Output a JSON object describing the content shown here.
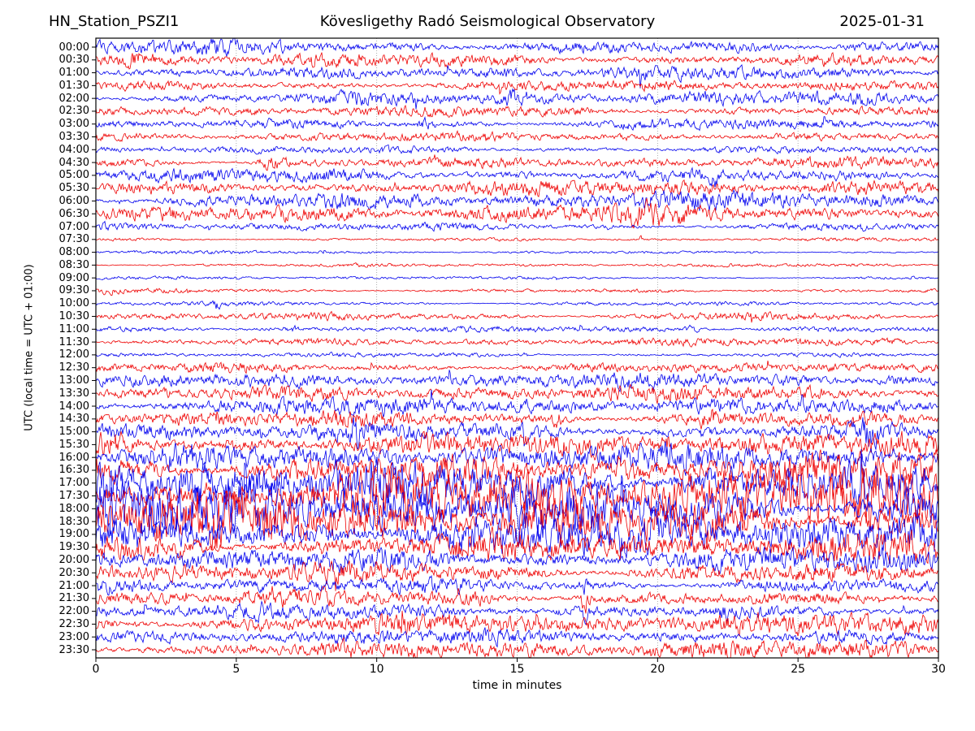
{
  "chart_data": {
    "type": "line",
    "subtype": "helicorder-seismogram",
    "title_left": "HN_Station_PSZI1",
    "title_center": "Kövesligethy Radó Seismological Observatory",
    "title_right": "2025-01-31",
    "xlabel": "time in minutes",
    "ylabel": "UTC (local time = UTC + 01:00)",
    "x_range": [
      0,
      30
    ],
    "x_ticks": [
      0,
      5,
      10,
      15,
      20,
      25,
      30
    ],
    "grid_minutes": [
      5,
      10,
      15,
      20,
      25
    ],
    "grid_on": true,
    "colors": {
      "blue": "#0000ee",
      "red": "#ee0000",
      "grid": "#999999",
      "frame": "#000000"
    },
    "trace_minutes_per_row": 30,
    "rows": [
      {
        "t": "00:00",
        "c": "b",
        "a": 4.5,
        "ev": [
          [
            27.5,
            0.8,
            2
          ]
        ]
      },
      {
        "t": "00:30",
        "c": "r",
        "a": 4.5,
        "ev": [
          [
            1.5,
            0.4,
            3
          ]
        ]
      },
      {
        "t": "01:00",
        "c": "b",
        "a": 3.8,
        "ev": [
          [
            14.5,
            0.5,
            2.5
          ]
        ]
      },
      {
        "t": "01:30",
        "c": "r",
        "a": 3.5,
        "ev": []
      },
      {
        "t": "02:00",
        "c": "b",
        "a": 4.2,
        "ev": [
          [
            14.8,
            0.4,
            3
          ]
        ]
      },
      {
        "t": "02:30",
        "c": "r",
        "a": 3.2,
        "ev": []
      },
      {
        "t": "03:00",
        "c": "b",
        "a": 3.6,
        "ev": [
          [
            11.8,
            0.4,
            3
          ]
        ]
      },
      {
        "t": "03:30",
        "c": "r",
        "a": 2.6,
        "ev": []
      },
      {
        "t": "04:00",
        "c": "b",
        "a": 2.6,
        "ev": []
      },
      {
        "t": "04:30",
        "c": "r",
        "a": 3.4,
        "ev": [
          [
            6.3,
            0.5,
            5
          ]
        ]
      },
      {
        "t": "05:00",
        "c": "b",
        "a": 4.6,
        "ev": [
          [
            22.0,
            0.15,
            6
          ]
        ]
      },
      {
        "t": "05:30",
        "c": "r",
        "a": 4.6,
        "ev": []
      },
      {
        "t": "06:00",
        "c": "b",
        "a": 5.0,
        "ev": [
          [
            8.6,
            0.8,
            2.5
          ],
          [
            20.0,
            1.2,
            2.5
          ]
        ]
      },
      {
        "t": "06:30",
        "c": "r",
        "a": 5.2,
        "ev": [
          [
            19.8,
            1.5,
            3
          ]
        ]
      },
      {
        "t": "07:00",
        "c": "b",
        "a": 2.6,
        "ev": [
          [
            27.3,
            0.08,
            7
          ]
        ]
      },
      {
        "t": "07:30",
        "c": "r",
        "a": 1.1,
        "ev": [
          [
            19.4,
            0.08,
            2.5
          ]
        ]
      },
      {
        "t": "08:00",
        "c": "b",
        "a": 1.0,
        "ev": []
      },
      {
        "t": "08:30",
        "c": "r",
        "a": 1.0,
        "ev": []
      },
      {
        "t": "09:00",
        "c": "b",
        "a": 1.0,
        "ev": []
      },
      {
        "t": "09:30",
        "c": "r",
        "a": 1.4,
        "ev": [
          [
            0.5,
            0.3,
            1.5
          ]
        ]
      },
      {
        "t": "10:00",
        "c": "b",
        "a": 1.5,
        "ev": [
          [
            4.3,
            0.12,
            4.5
          ]
        ]
      },
      {
        "t": "10:30",
        "c": "r",
        "a": 2.4,
        "ev": [
          [
            22.8,
            1.5,
            2
          ]
        ]
      },
      {
        "t": "11:00",
        "c": "b",
        "a": 1.7,
        "ev": [
          [
            7.0,
            0.15,
            3.5
          ],
          [
            21.2,
            0.25,
            2.5
          ]
        ]
      },
      {
        "t": "11:30",
        "c": "r",
        "a": 2.2,
        "ev": [
          [
            28.3,
            0.6,
            2
          ]
        ]
      },
      {
        "t": "12:00",
        "c": "b",
        "a": 1.5,
        "ev": []
      },
      {
        "t": "12:30",
        "c": "r",
        "a": 3.4,
        "ev": [
          [
            26.5,
            1.5,
            2
          ]
        ]
      },
      {
        "t": "13:00",
        "c": "b",
        "a": 4.4,
        "ev": [
          [
            28.6,
            0.8,
            3
          ]
        ]
      },
      {
        "t": "13:30",
        "c": "r",
        "a": 4.6,
        "ev": []
      },
      {
        "t": "14:00",
        "c": "b",
        "a": 5.0,
        "ev": [
          [
            6.8,
            1.0,
            3
          ]
        ]
      },
      {
        "t": "14:30",
        "c": "r",
        "a": 5.6,
        "ev": [
          [
            16.4,
            0.2,
            6
          ],
          [
            21.8,
            0.3,
            5
          ]
        ]
      },
      {
        "t": "15:00",
        "c": "b",
        "a": 6.0,
        "ev": [
          [
            9.3,
            0.25,
            9
          ],
          [
            27.6,
            0.5,
            7
          ]
        ]
      },
      {
        "t": "15:30",
        "c": "r",
        "a": 7.0,
        "ev": [
          [
            0.6,
            0.5,
            6
          ],
          [
            20.3,
            0.2,
            7
          ]
        ]
      },
      {
        "t": "16:00",
        "c": "b",
        "a": 8.0,
        "ev": [
          [
            3.4,
            0.8,
            5
          ]
        ]
      },
      {
        "t": "16:30",
        "c": "r",
        "a": 11.0,
        "ev": []
      },
      {
        "t": "17:00",
        "c": "b",
        "a": 15.0,
        "ev": [
          [
            0.4,
            0.4,
            6
          ]
        ]
      },
      {
        "t": "17:30",
        "c": "r",
        "a": 17.0,
        "ev": []
      },
      {
        "t": "18:00",
        "c": "b",
        "a": 17.0,
        "ev": [
          [
            0.3,
            0.5,
            5
          ]
        ]
      },
      {
        "t": "18:30",
        "c": "r",
        "a": 15.0,
        "ev": []
      },
      {
        "t": "19:00",
        "c": "b",
        "a": 13.0,
        "ev": []
      },
      {
        "t": "19:30",
        "c": "r",
        "a": 10.0,
        "ev": []
      },
      {
        "t": "20:00",
        "c": "b",
        "a": 9.0,
        "ev": []
      },
      {
        "t": "20:30",
        "c": "r",
        "a": 7.0,
        "ev": []
      },
      {
        "t": "21:00",
        "c": "b",
        "a": 5.0,
        "ev": [
          [
            17.4,
            0.15,
            7
          ]
        ]
      },
      {
        "t": "21:30",
        "c": "r",
        "a": 5.0,
        "ev": [
          [
            17.4,
            0.15,
            10
          ],
          [
            13.5,
            0.3,
            3
          ]
        ]
      },
      {
        "t": "22:00",
        "c": "b",
        "a": 4.5,
        "ev": [
          [
            17.4,
            0.1,
            6
          ],
          [
            22.3,
            0.2,
            4
          ]
        ]
      },
      {
        "t": "22:30",
        "c": "r",
        "a": 6.5,
        "ev": []
      },
      {
        "t": "23:00",
        "c": "b",
        "a": 4.5,
        "ev": []
      },
      {
        "t": "23:30",
        "c": "r",
        "a": 5.5,
        "ev": []
      }
    ],
    "notes": "48 half-hour traces, blue = on-the-hour rows, red = half-hour rows; amplitudes 'a' are relative noise half-amplitudes in px; 'ev' = [minute, width_min, extra_amp] visible bursts/spikes"
  }
}
